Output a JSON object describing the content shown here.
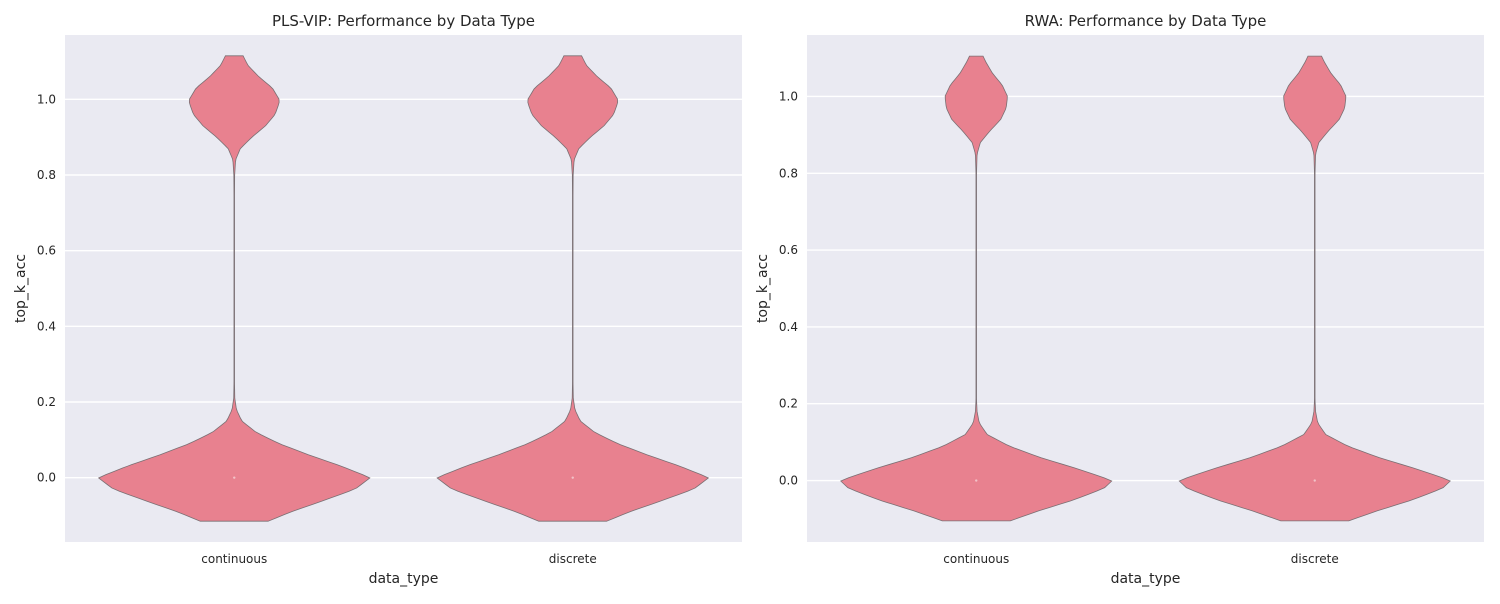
{
  "chart_data": [
    {
      "type": "violin",
      "title": "PLS-VIP: Performance by Data Type",
      "xlabel": "data_type",
      "ylabel": "top_k_acc",
      "categories": [
        "continuous",
        "discrete"
      ],
      "ylim": [
        -0.17,
        1.17
      ],
      "yticks": [
        "0.0",
        "0.2",
        "0.4",
        "0.6",
        "0.8",
        "1.0"
      ],
      "ytick_values": [
        0.0,
        0.2,
        0.4,
        0.6,
        0.8,
        1.0
      ],
      "grid": true,
      "fill_color": "#e8818f",
      "edge_color": "#7a6f73",
      "background_color": "#eaeaf2",
      "range": [
        -0.115,
        1.115
      ],
      "density_profile": [
        [
          -0.115,
          0.25
        ],
        [
          -0.09,
          0.42
        ],
        [
          -0.06,
          0.66
        ],
        [
          -0.03,
          0.89
        ],
        [
          0.0,
          1.0
        ],
        [
          0.03,
          0.79
        ],
        [
          0.06,
          0.55
        ],
        [
          0.09,
          0.33
        ],
        [
          0.12,
          0.16
        ],
        [
          0.15,
          0.055
        ],
        [
          0.18,
          0.016
        ],
        [
          0.21,
          0.004
        ],
        [
          0.25,
          0.002
        ],
        [
          0.5,
          0.002
        ],
        [
          0.75,
          0.002
        ],
        [
          0.8,
          0.003
        ],
        [
          0.84,
          0.01
        ],
        [
          0.87,
          0.045
        ],
        [
          0.9,
          0.13
        ],
        [
          0.93,
          0.23
        ],
        [
          0.96,
          0.3
        ],
        [
          0.99,
          0.33
        ],
        [
          1.0,
          0.33
        ],
        [
          1.03,
          0.28
        ],
        [
          1.06,
          0.18
        ],
        [
          1.09,
          0.1
        ],
        [
          1.115,
          0.065
        ]
      ]
    },
    {
      "type": "violin",
      "title": "RWA: Performance by Data Type",
      "xlabel": "data_type",
      "ylabel": "top_k_acc",
      "categories": [
        "continuous",
        "discrete"
      ],
      "ylim": [
        -0.16,
        1.16
      ],
      "yticks": [
        "0.0",
        "0.2",
        "0.4",
        "0.6",
        "0.8",
        "1.0"
      ],
      "ytick_values": [
        0.0,
        0.2,
        0.4,
        0.6,
        0.8,
        1.0
      ],
      "grid": true,
      "fill_color": "#e8818f",
      "edge_color": "#7a6f73",
      "background_color": "#eaeaf2",
      "range": [
        -0.105,
        1.105
      ],
      "density_profile": [
        [
          -0.105,
          0.25
        ],
        [
          -0.08,
          0.45
        ],
        [
          -0.05,
          0.72
        ],
        [
          -0.02,
          0.94
        ],
        [
          0.0,
          1.0
        ],
        [
          0.03,
          0.75
        ],
        [
          0.06,
          0.47
        ],
        [
          0.09,
          0.24
        ],
        [
          0.12,
          0.08
        ],
        [
          0.15,
          0.022
        ],
        [
          0.18,
          0.006
        ],
        [
          0.21,
          0.002
        ],
        [
          0.5,
          0.002
        ],
        [
          0.8,
          0.002
        ],
        [
          0.85,
          0.006
        ],
        [
          0.88,
          0.03
        ],
        [
          0.91,
          0.1
        ],
        [
          0.94,
          0.18
        ],
        [
          0.97,
          0.22
        ],
        [
          1.0,
          0.23
        ],
        [
          1.03,
          0.19
        ],
        [
          1.06,
          0.12
        ],
        [
          1.09,
          0.07
        ],
        [
          1.105,
          0.05
        ]
      ]
    }
  ]
}
